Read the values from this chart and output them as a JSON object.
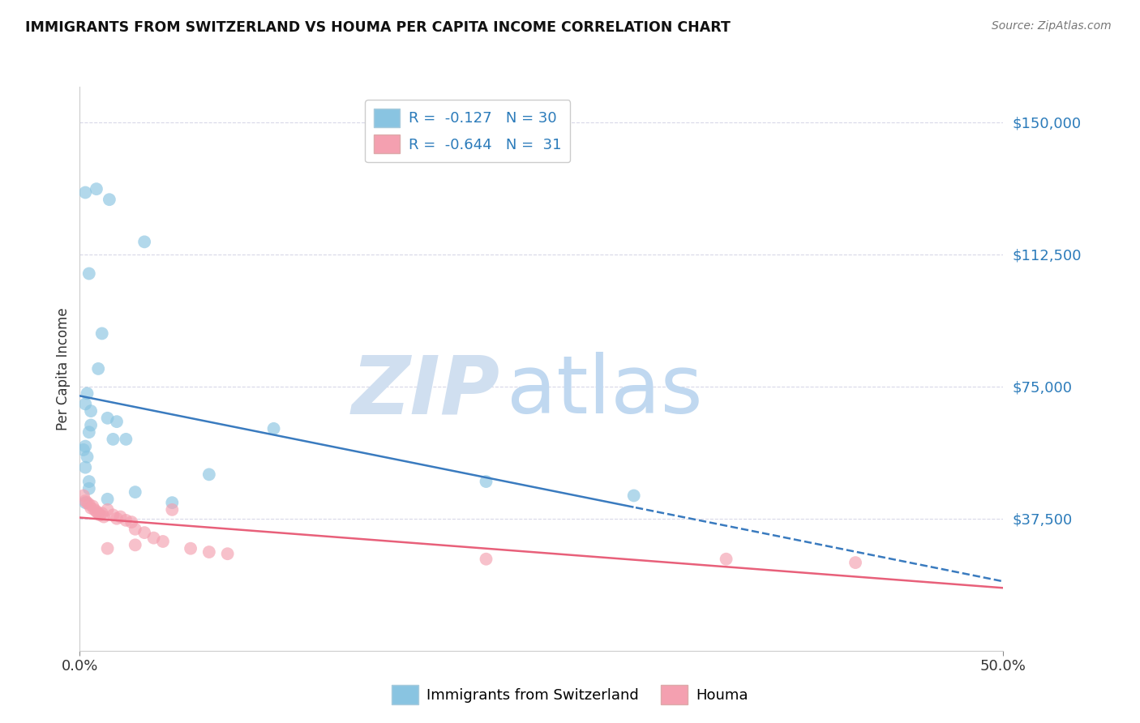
{
  "title": "IMMIGRANTS FROM SWITZERLAND VS HOUMA PER CAPITA INCOME CORRELATION CHART",
  "source": "Source: ZipAtlas.com",
  "ylabel": "Per Capita Income",
  "y_ticks": [
    0,
    37500,
    75000,
    112500,
    150000
  ],
  "y_tick_labels": [
    "",
    "$37,500",
    "$75,000",
    "$112,500",
    "$150,000"
  ],
  "x_lim": [
    0,
    50
  ],
  "y_lim": [
    0,
    160000
  ],
  "legend_blue": "R =  -0.127   N = 30",
  "legend_pink": "R =  -0.644   N =  31",
  "blue_scatter": [
    [
      0.3,
      130000
    ],
    [
      0.9,
      131000
    ],
    [
      1.6,
      128000
    ],
    [
      0.5,
      107000
    ],
    [
      1.2,
      90000
    ],
    [
      1.0,
      80000
    ],
    [
      0.4,
      73000
    ],
    [
      0.3,
      70000
    ],
    [
      0.6,
      68000
    ],
    [
      1.5,
      66000
    ],
    [
      0.6,
      64000
    ],
    [
      0.5,
      62000
    ],
    [
      2.0,
      65000
    ],
    [
      0.3,
      58000
    ],
    [
      0.2,
      57000
    ],
    [
      3.5,
      116000
    ],
    [
      0.4,
      55000
    ],
    [
      2.5,
      60000
    ],
    [
      0.3,
      52000
    ],
    [
      1.8,
      60000
    ],
    [
      0.5,
      48000
    ],
    [
      0.5,
      46000
    ],
    [
      7.0,
      50000
    ],
    [
      5.0,
      42000
    ],
    [
      1.5,
      43000
    ],
    [
      3.0,
      45000
    ],
    [
      0.3,
      42000
    ],
    [
      10.5,
      63000
    ],
    [
      22.0,
      48000
    ],
    [
      30.0,
      44000
    ]
  ],
  "pink_scatter": [
    [
      0.2,
      44000
    ],
    [
      0.3,
      42500
    ],
    [
      0.4,
      42000
    ],
    [
      0.5,
      41500
    ],
    [
      0.6,
      40500
    ],
    [
      0.7,
      41000
    ],
    [
      0.8,
      40000
    ],
    [
      0.9,
      39500
    ],
    [
      1.0,
      39000
    ],
    [
      1.1,
      38500
    ],
    [
      1.2,
      39000
    ],
    [
      1.3,
      38000
    ],
    [
      1.5,
      40000
    ],
    [
      1.8,
      38500
    ],
    [
      2.0,
      37500
    ],
    [
      2.2,
      38000
    ],
    [
      2.5,
      37000
    ],
    [
      2.8,
      36500
    ],
    [
      3.0,
      34500
    ],
    [
      3.5,
      33500
    ],
    [
      4.0,
      32000
    ],
    [
      4.5,
      31000
    ],
    [
      5.0,
      40000
    ],
    [
      6.0,
      29000
    ],
    [
      7.0,
      28000
    ],
    [
      8.0,
      27500
    ],
    [
      1.5,
      29000
    ],
    [
      3.0,
      30000
    ],
    [
      22.0,
      26000
    ],
    [
      35.0,
      26000
    ],
    [
      42.0,
      25000
    ]
  ],
  "blue_color": "#89c4e1",
  "pink_color": "#f4a0b0",
  "blue_line_color": "#3a7bbf",
  "pink_line_color": "#e8607a",
  "bg_color": "#ffffff",
  "grid_color": "#d8d8e8",
  "watermark_zip_color": "#d0dff0",
  "watermark_atlas_color": "#c0d8f0"
}
